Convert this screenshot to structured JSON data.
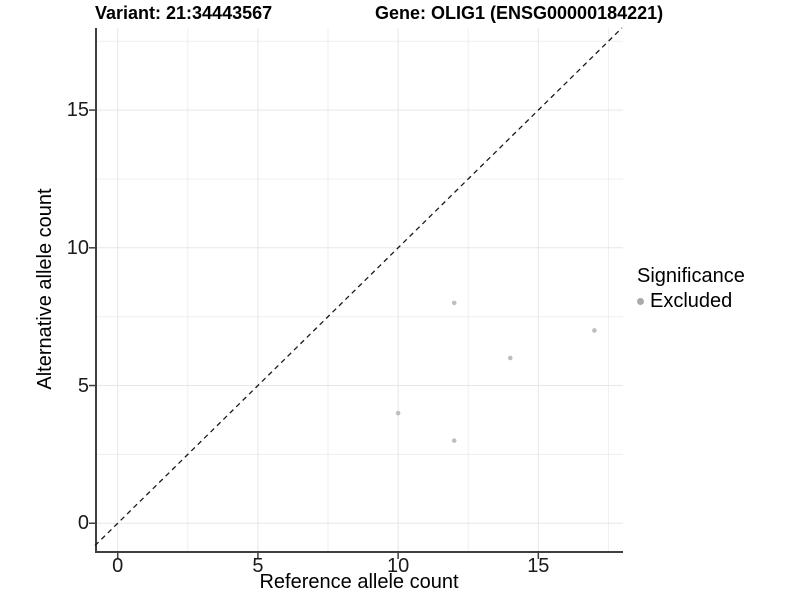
{
  "chart_data": {
    "type": "scatter",
    "title_left": "Variant: 21:34443567",
    "title_right": "Gene: OLIG1 (ENSG00000184221)",
    "xlabel": "Reference allele count",
    "ylabel": "Alternative allele count",
    "xlim": [
      -0.81,
      18.02
    ],
    "ylim": [
      -1.08,
      17.98
    ],
    "x_ticks": [
      0,
      5,
      10,
      15
    ],
    "y_ticks": [
      0,
      5,
      10,
      15
    ],
    "minor_gridlines_x": [
      2.5,
      7.5,
      12.5,
      17.5
    ],
    "minor_gridlines_y": [
      2.5,
      7.5,
      12.5,
      17.5
    ],
    "grid": {
      "show": true,
      "major_color": "#e7e7e7",
      "minor_color": "#efefef"
    },
    "reference_line": {
      "type": "identity",
      "slope": 1,
      "intercept": 0,
      "style": "dashed",
      "color": "#1a1a1a"
    },
    "series": [
      {
        "name": "Excluded",
        "color": "#bebebe",
        "marker": "circle",
        "points": [
          [
            12,
            8
          ],
          [
            17,
            7
          ],
          [
            14,
            6
          ],
          [
            10,
            4
          ],
          [
            12,
            3
          ]
        ]
      }
    ],
    "legend": {
      "title": "Significance",
      "position": "right",
      "items": [
        {
          "label": "Excluded",
          "color": "#aaaaaa"
        }
      ]
    },
    "axis_color": "#3f3f3f",
    "background": "#ffffff"
  }
}
